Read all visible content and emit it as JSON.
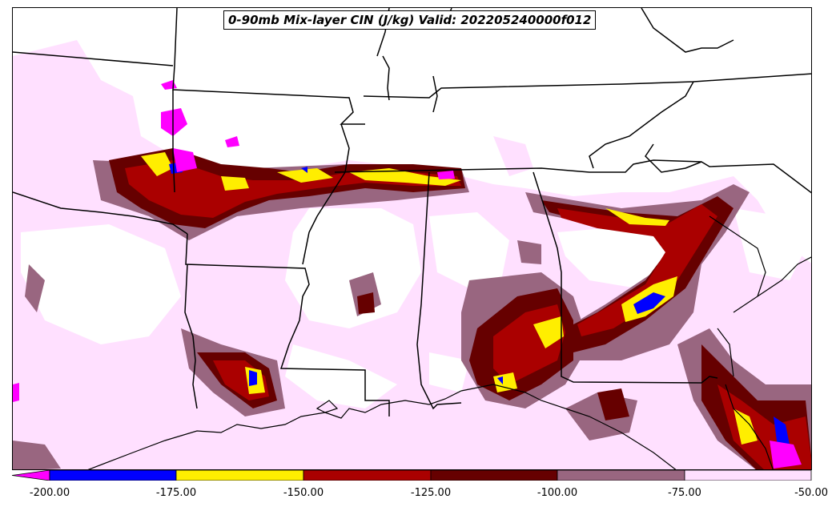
{
  "title": "0-90mb Mix-layer CIN (J/kg) Valid: 202205240000f012",
  "colorbar": {
    "colors": [
      "#ff00ff",
      "#0000ff",
      "#ffee00",
      "#aa0000",
      "#660000",
      "#996680",
      "#ffe0ff"
    ],
    "ticks": [
      "-200.00",
      "-175.00",
      "-150.00",
      "-125.00",
      "-100.00",
      "-75.00",
      "-50.00"
    ]
  },
  "legend_colors": {
    "le_200": "#ff00ff",
    "n175_200": "#0000ff",
    "n150_175": "#ffee00",
    "n125_150": "#aa0000",
    "n100_125": "#660000",
    "n75_100": "#996680",
    "n50_75": "#ffe0ff"
  }
}
